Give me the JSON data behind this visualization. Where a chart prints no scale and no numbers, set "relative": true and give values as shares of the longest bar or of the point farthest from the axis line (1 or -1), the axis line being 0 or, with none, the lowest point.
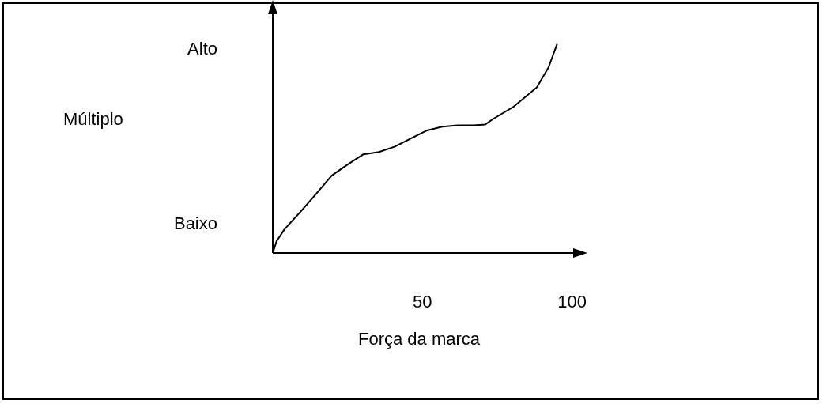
{
  "chart_data": {
    "type": "line",
    "relative": true,
    "xlabel": "Força da marca",
    "color": "#000000",
    "xlim": [
      0,
      103
    ],
    "xticks": [
      50,
      100
    ],
    "grid": false,
    "legend": false,
    "marker": "none",
    "line_style": "solid",
    "annotations": [
      "Alto",
      "Múltiplo",
      "Baixo"
    ],
    "x": [
      0,
      1.3,
      3.9,
      9.2,
      14.5,
      19.7,
      25,
      30.3,
      35.5,
      40.8,
      46,
      51.3,
      56.6,
      61.8,
      67.1,
      71,
      73.7,
      80.3,
      88.2,
      92.1,
      95
    ],
    "values": [
      0,
      0.057,
      0.113,
      0.196,
      0.283,
      0.37,
      0.423,
      0.472,
      0.483,
      0.509,
      0.547,
      0.585,
      0.604,
      0.611,
      0.611,
      0.615,
      0.642,
      0.698,
      0.792,
      0.887,
      1.0
    ]
  }
}
